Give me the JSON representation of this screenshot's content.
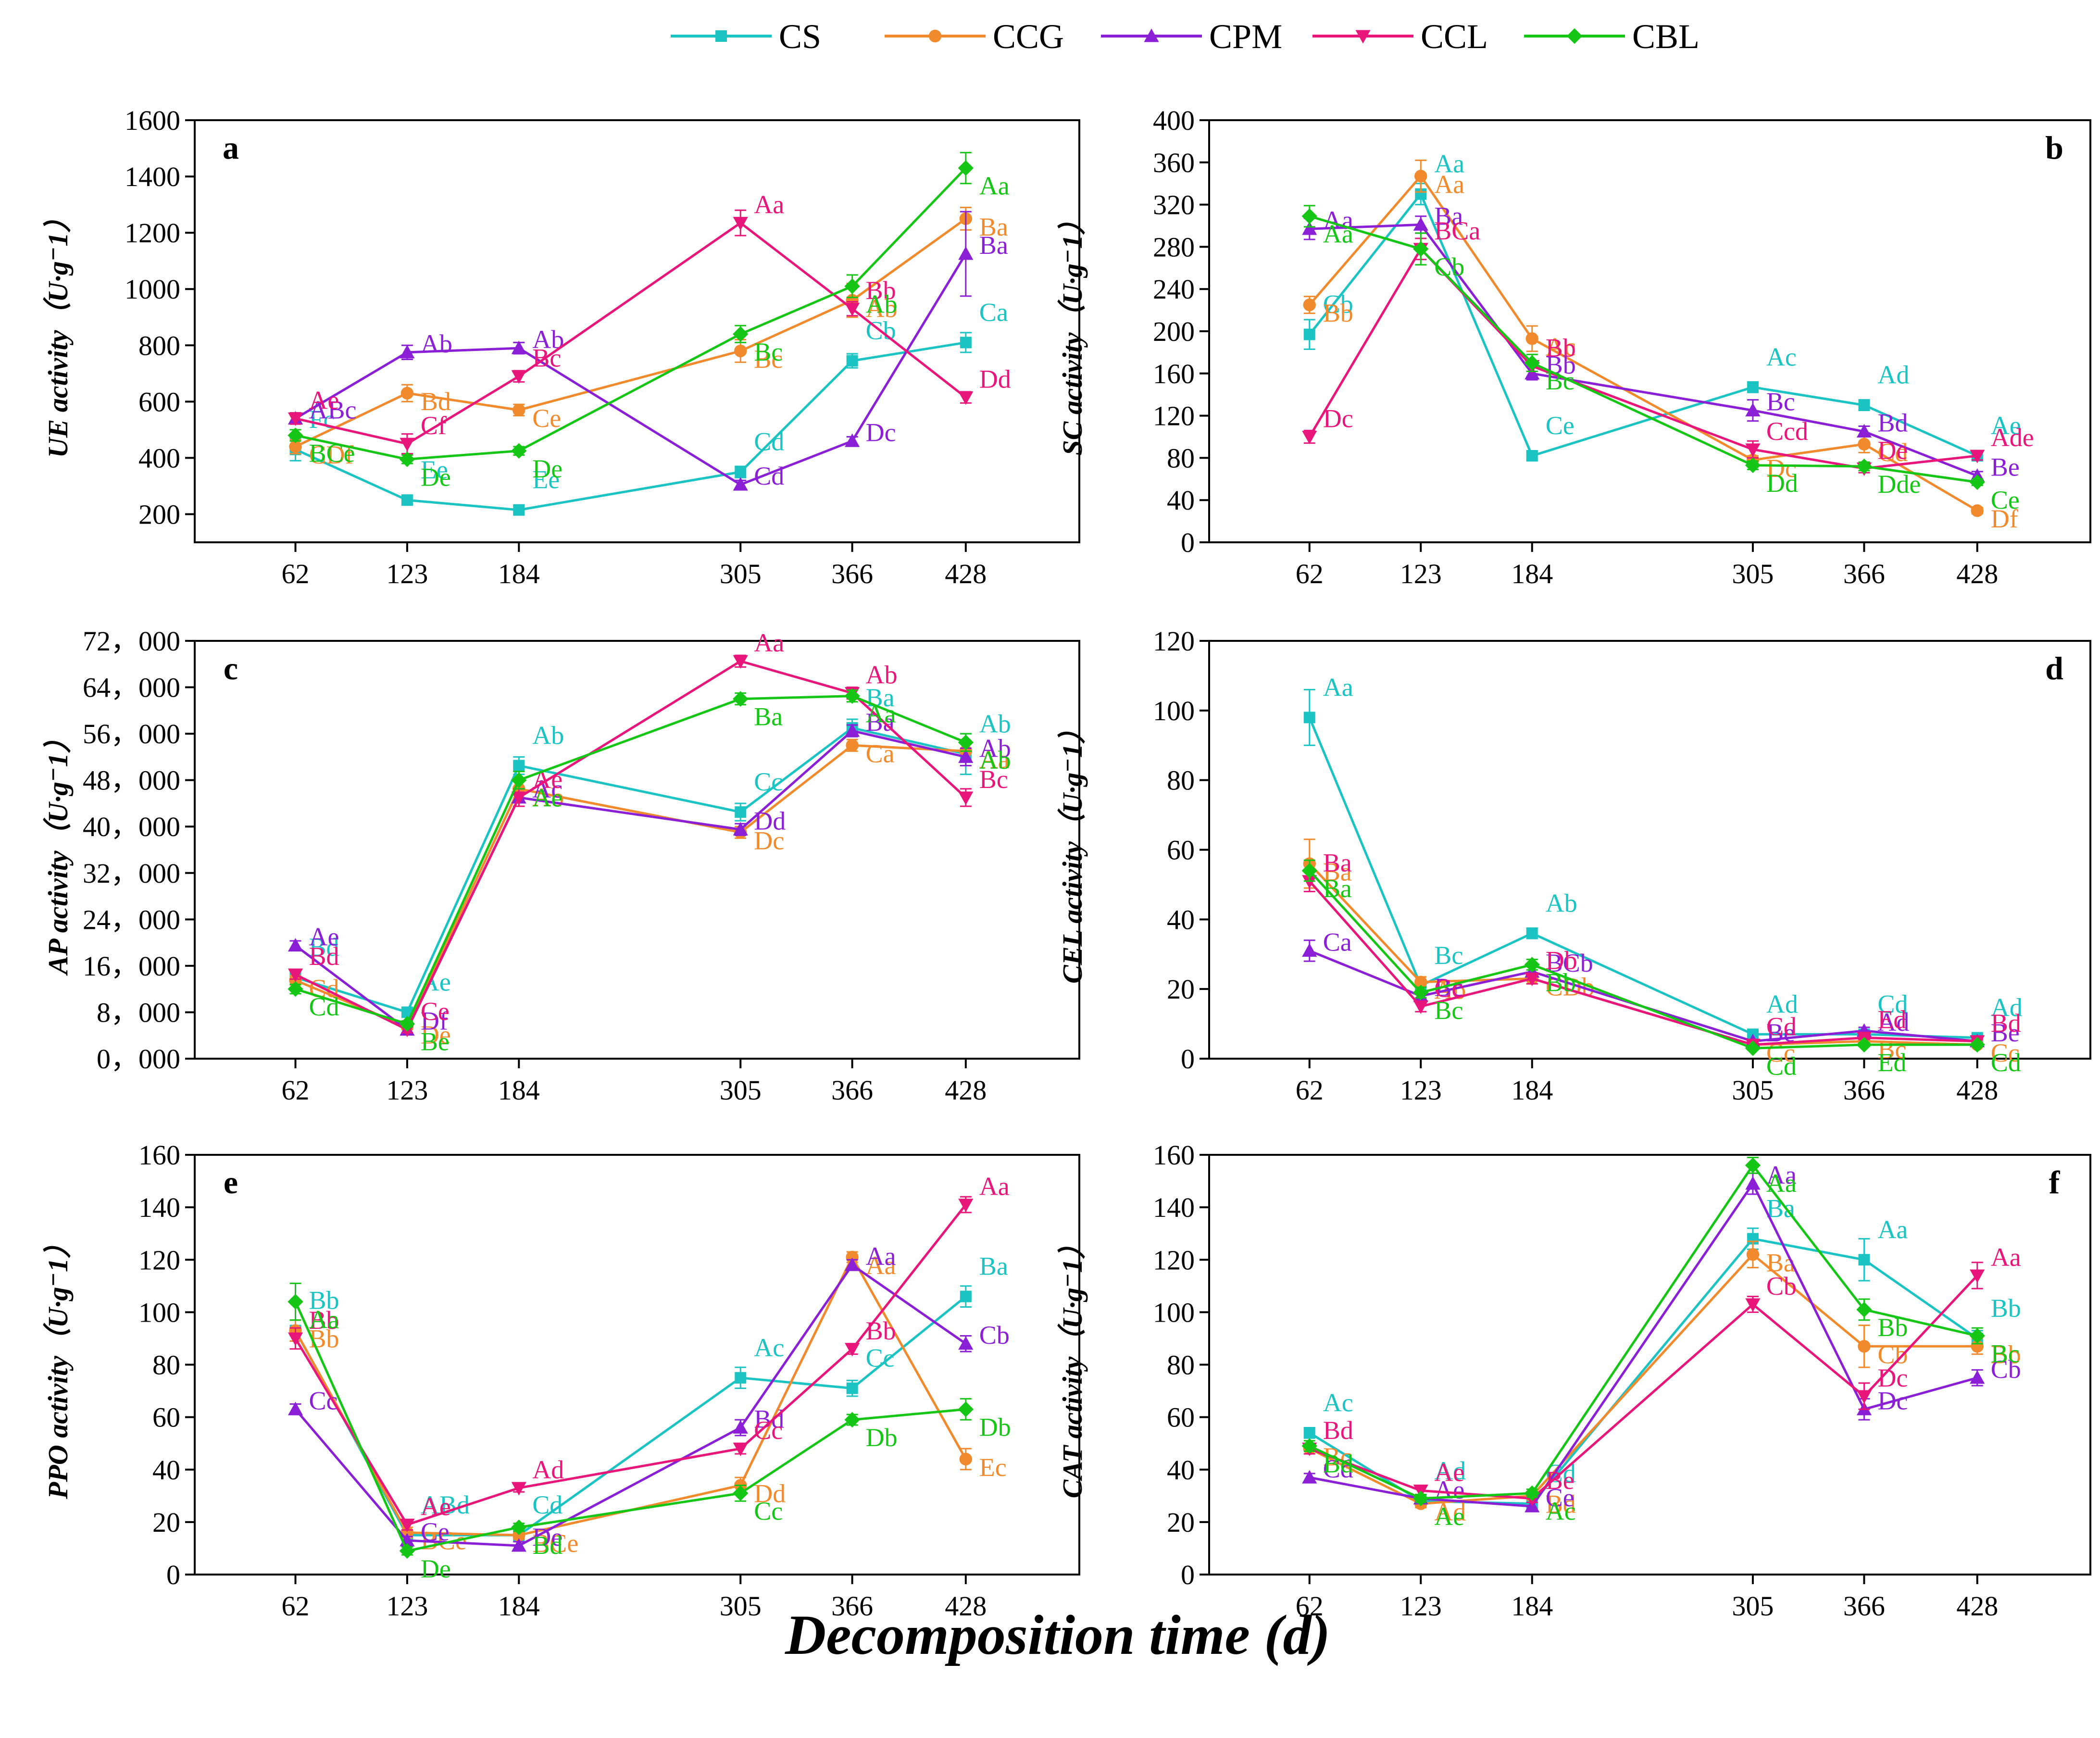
{
  "figure": {
    "xlabel": "Decomposition time (d)",
    "colors": {
      "CS": "#1BC3C3",
      "CCG": "#F08A2C",
      "CPM": "#8A1FD6",
      "CCL": "#E8157A",
      "CBL": "#16C616"
    }
  },
  "legend": [
    {
      "name": "CS",
      "marker": "square"
    },
    {
      "name": "CCG",
      "marker": "circle"
    },
    {
      "name": "CPM",
      "marker": "triangle-up"
    },
    {
      "name": "CCL",
      "marker": "triangle-down"
    },
    {
      "name": "CBL",
      "marker": "diamond"
    }
  ],
  "chart_data": [
    {
      "panel": "a",
      "type": "line",
      "ylabel": "UE activity（U·g⁻1）",
      "x": [
        62,
        123,
        184,
        305,
        366,
        428
      ],
      "xlim": [
        7,
        490
      ],
      "ylim": [
        100,
        1600
      ],
      "yticks": [
        200,
        400,
        600,
        800,
        1000,
        1200,
        1400,
        1600
      ],
      "ytick_labels": [
        "200",
        "400",
        "600",
        "800",
        "1000",
        "1200",
        "1400",
        "1600"
      ],
      "series": [
        {
          "name": "CS",
          "values": [
            430,
            250,
            215,
            350,
            745,
            810
          ],
          "err": [
            40,
            15,
            15,
            20,
            25,
            35
          ],
          "labels": [
            "Fc",
            "Ee",
            "Ee",
            "Cd",
            "Cb",
            "Ca"
          ]
        },
        {
          "name": "CCG",
          "values": [
            440,
            630,
            570,
            780,
            960,
            1250
          ],
          "err": [
            25,
            30,
            20,
            40,
            60,
            40
          ],
          "labels": [
            "CDf",
            "Bd",
            "Ce",
            "Bc",
            "Ab",
            "Ba"
          ]
        },
        {
          "name": "CPM",
          "values": [
            540,
            775,
            790,
            305,
            460,
            1125
          ],
          "err": [
            20,
            25,
            20,
            15,
            15,
            150
          ],
          "labels": [
            "ABc",
            "Ab",
            "Ab",
            "Cd",
            "Dc",
            "Ba"
          ]
        },
        {
          "name": "CCL",
          "values": [
            540,
            450,
            690,
            1235,
            930,
            615
          ],
          "err": [
            20,
            35,
            20,
            45,
            25,
            20
          ],
          "labels": [
            "Ae",
            "Cf",
            "Bc",
            "Aa",
            "Bb",
            "Dd"
          ]
        },
        {
          "name": "CBL",
          "values": [
            480,
            395,
            425,
            840,
            1010,
            1430
          ],
          "err": [
            20,
            15,
            15,
            30,
            40,
            55
          ],
          "labels": [
            "BCe",
            "De",
            "De",
            "Bc",
            "Ab",
            "Aa"
          ]
        }
      ]
    },
    {
      "panel": "b",
      "type": "line",
      "ylabel": "SC activity（U·g⁻1）",
      "x": [
        62,
        123,
        184,
        305,
        366,
        428
      ],
      "xlim": [
        7,
        490
      ],
      "ylim": [
        0,
        400
      ],
      "yticks": [
        0,
        40,
        80,
        120,
        160,
        200,
        240,
        280,
        320,
        360,
        400
      ],
      "ytick_labels": [
        "0",
        "40",
        "80",
        "120",
        "160",
        "200",
        "240",
        "280",
        "320",
        "360",
        "400"
      ],
      "series": [
        {
          "name": "CS",
          "values": [
            197,
            330,
            82,
            147,
            130,
            82
          ],
          "err": [
            14,
            10,
            4,
            5,
            5,
            4
          ],
          "labels": [
            "Cb",
            "Aa",
            "Ce",
            "Ac",
            "Ad",
            "Ae"
          ]
        },
        {
          "name": "CCG",
          "values": [
            225,
            347,
            193,
            78,
            93,
            30
          ],
          "err": [
            8,
            15,
            12,
            4,
            8,
            3
          ],
          "labels": [
            "Bb",
            "Aa",
            "Ac",
            "Dc",
            "Cd",
            "Df"
          ]
        },
        {
          "name": "CPM",
          "values": [
            297,
            301,
            160,
            125,
            105,
            63
          ],
          "err": [
            10,
            8,
            6,
            10,
            5,
            4
          ],
          "labels": [
            "Aa",
            "Ba",
            "Bb",
            "Bc",
            "Bd",
            "Be"
          ]
        },
        {
          "name": "CCL",
          "values": [
            100,
            278,
            167,
            88,
            70,
            82
          ],
          "err": [
            6,
            10,
            5,
            8,
            4,
            4
          ],
          "labels": [
            "Dc",
            "BCa",
            "Bb",
            "Ccd",
            "De",
            "Ade"
          ]
        },
        {
          "name": "CBL",
          "values": [
            309,
            278,
            170,
            73,
            72,
            57
          ],
          "err": [
            10,
            15,
            8,
            4,
            4,
            3
          ],
          "labels": [
            "Aa",
            "Cb",
            "Bc",
            "Dd",
            "Dde",
            "Ce"
          ]
        }
      ]
    },
    {
      "panel": "c",
      "type": "line",
      "ylabel": "AP activity（U·g⁻1）",
      "x": [
        62,
        123,
        184,
        305,
        366,
        428
      ],
      "xlim": [
        7,
        490
      ],
      "ylim": [
        0,
        72
      ],
      "yticks": [
        0,
        8,
        16,
        24,
        32,
        40,
        48,
        56,
        64,
        72
      ],
      "ytick_labels": [
        "0，000",
        "8，000",
        "16，000",
        "24，000",
        "32，000",
        "40，000",
        "48，000",
        "56，000",
        "64，000",
        "72，000"
      ],
      "series": [
        {
          "name": "CS",
          "values": [
            14.0,
            8.0,
            50.5,
            42.5,
            57.0,
            52.5
          ],
          "err": [
            0.8,
            0.8,
            1.5,
            1.5,
            1.5,
            3.5
          ],
          "labels": [
            "Bd",
            "Ae",
            "Ab",
            "Cc",
            "Ba",
            "Ab"
          ]
        },
        {
          "name": "CCG",
          "values": [
            13.5,
            5.5,
            46.5,
            39.0,
            54.0,
            53.0
          ],
          "err": [
            0.8,
            0.5,
            1.5,
            1.0,
            1.0,
            1.5
          ],
          "labels": [
            "Cd",
            "De",
            "Ab",
            "Dc",
            "Ca",
            "Aa"
          ]
        },
        {
          "name": "CPM",
          "values": [
            19.5,
            5.0,
            45.0,
            39.5,
            56.5,
            52.0
          ],
          "err": [
            0.8,
            0.5,
            1.5,
            1.0,
            1.0,
            1.5
          ],
          "labels": [
            "Ae",
            "Df",
            "Ac",
            "Dd",
            "Ba",
            "Ab"
          ]
        },
        {
          "name": "CCL",
          "values": [
            14.5,
            5.0,
            45.0,
            68.5,
            63.0,
            45.0
          ],
          "err": [
            0.8,
            0.5,
            1.5,
            1.0,
            1.0,
            1.5
          ],
          "labels": [
            "Bd",
            "Ce",
            "Ae",
            "Aa",
            "Ab",
            "Bc"
          ]
        },
        {
          "name": "CBL",
          "values": [
            12.0,
            6.0,
            48.0,
            62.0,
            62.5,
            54.5
          ],
          "err": [
            0.8,
            0.5,
            1.5,
            1.0,
            1.0,
            1.5
          ],
          "labels": [
            "Cd",
            "Be",
            "Ae",
            "Ba",
            "Aa",
            "Ab"
          ]
        }
      ]
    },
    {
      "panel": "d",
      "type": "line",
      "ylabel": "CEL activity（U·g⁻1）",
      "x": [
        62,
        123,
        184,
        305,
        366,
        428
      ],
      "xlim": [
        7,
        490
      ],
      "ylim": [
        0,
        120
      ],
      "yticks": [
        0,
        20,
        40,
        60,
        80,
        100,
        120
      ],
      "ytick_labels": [
        "0",
        "20",
        "40",
        "60",
        "80",
        "100",
        "120"
      ],
      "series": [
        {
          "name": "CS",
          "values": [
            98,
            21,
            36,
            7,
            7,
            6
          ],
          "err": [
            8,
            1.5,
            1.5,
            1,
            1,
            1
          ],
          "labels": [
            "Aa",
            "Bc",
            "Ab",
            "Ad",
            "Cd",
            "Ad"
          ]
        },
        {
          "name": "CCG",
          "values": [
            56,
            22,
            23,
            4,
            5,
            4
          ],
          "err": [
            7,
            1.5,
            1.5,
            0.5,
            0.5,
            0.5
          ],
          "labels": [
            "Ba",
            "Ab",
            "CDb",
            "Cc",
            "Bc",
            "Cc"
          ]
        },
        {
          "name": "CPM",
          "values": [
            31,
            18,
            25,
            5,
            8,
            5
          ],
          "err": [
            3,
            1.5,
            1.5,
            0.5,
            1,
            0.5
          ],
          "labels": [
            "Ca",
            "Bc",
            "BCb",
            "Be",
            "Ad",
            "Be"
          ]
        },
        {
          "name": "CCL",
          "values": [
            51,
            15,
            23,
            4,
            6,
            5
          ],
          "err": [
            3,
            1.5,
            1.5,
            0.5,
            0.5,
            0.5
          ],
          "labels": [
            "Ba",
            "Cc",
            "Db",
            "Cd",
            "Ed",
            "Bd"
          ]
        },
        {
          "name": "CBL",
          "values": [
            54,
            19,
            27,
            3,
            4,
            4
          ],
          "err": [
            3,
            1.5,
            1.5,
            0.5,
            0.5,
            0.5
          ],
          "labels": [
            "Ba",
            "Bc",
            "Bb",
            "Cd",
            "Ed",
            "Cd"
          ]
        }
      ]
    },
    {
      "panel": "e",
      "type": "line",
      "ylabel": "PPO activity（U·g⁻1）",
      "x": [
        62,
        123,
        184,
        305,
        366,
        428
      ],
      "xlim": [
        7,
        490
      ],
      "ylim": [
        0,
        160
      ],
      "yticks": [
        0,
        20,
        40,
        60,
        80,
        100,
        120,
        140,
        160
      ],
      "ytick_labels": [
        "0",
        "20",
        "40",
        "60",
        "80",
        "100",
        "120",
        "140",
        "160"
      ],
      "series": [
        {
          "name": "CS",
          "values": [
            93,
            15,
            15,
            75,
            71,
            106
          ],
          "err": [
            4,
            2,
            1.5,
            4,
            3,
            4
          ],
          "labels": [
            "Bb",
            "ABd",
            "Cd",
            "Ac",
            "Cc",
            "Ba"
          ]
        },
        {
          "name": "CCG",
          "values": [
            93,
            16,
            15,
            34,
            121,
            44
          ],
          "err": [
            4,
            2,
            1.5,
            3,
            2,
            4
          ],
          "labels": [
            "Bb",
            "BCe",
            "BCe",
            "Dd",
            "Aa",
            "Ec"
          ]
        },
        {
          "name": "CPM",
          "values": [
            63,
            13,
            11,
            56,
            118,
            88
          ],
          "err": [
            2,
            1.5,
            1.5,
            3,
            2,
            3
          ],
          "labels": [
            "Cc",
            "Ce",
            "De",
            "Bd",
            "Aa",
            "Cb"
          ]
        },
        {
          "name": "CCL",
          "values": [
            90,
            19,
            33,
            48,
            86,
            141
          ],
          "err": [
            4,
            2,
            1.5,
            2,
            2,
            3
          ],
          "labels": [
            "Bb",
            "Ae",
            "Ad",
            "Cc",
            "Bb",
            "Aa"
          ]
        },
        {
          "name": "CBL",
          "values": [
            104,
            9,
            18,
            31,
            59,
            63
          ],
          "err": [
            7,
            1.5,
            1.5,
            3,
            2,
            4
          ],
          "labels": [
            "Aa",
            "De",
            "Bd",
            "Cc",
            "Db",
            "Db"
          ]
        }
      ]
    },
    {
      "panel": "f",
      "type": "line",
      "ylabel": "CAT activity（U·g⁻1）",
      "x": [
        62,
        123,
        184,
        305,
        366,
        428
      ],
      "xlim": [
        7,
        490
      ],
      "ylim": [
        0,
        160
      ],
      "yticks": [
        0,
        20,
        40,
        60,
        80,
        100,
        120,
        140,
        160
      ],
      "ytick_labels": [
        "0",
        "20",
        "40",
        "60",
        "80",
        "100",
        "120",
        "140",
        "160"
      ],
      "series": [
        {
          "name": "CS",
          "values": [
            54,
            28,
            27,
            128,
            120,
            90
          ],
          "err": [
            2,
            1.5,
            1.5,
            4,
            8,
            3
          ],
          "labels": [
            "Ac",
            "Ad",
            "Cd",
            "Ba",
            "Aa",
            "Bb"
          ]
        },
        {
          "name": "CCG",
          "values": [
            48,
            27,
            30,
            122,
            87,
            87
          ],
          "err": [
            2,
            1.5,
            1.5,
            5,
            8,
            3
          ],
          "labels": [
            "Bc",
            "Ad",
            "Bd",
            "Ba",
            "Cb",
            "Bb"
          ]
        },
        {
          "name": "CPM",
          "values": [
            37,
            29,
            26,
            149,
            63,
            75
          ],
          "err": [
            1.5,
            1.5,
            1.5,
            4,
            4,
            3
          ],
          "labels": [
            "Cd",
            "Ae",
            "Ce",
            "Aa",
            "Dc",
            "Cb"
          ]
        },
        {
          "name": "CCL",
          "values": [
            48,
            32,
            29,
            103,
            68,
            114
          ],
          "err": [
            2,
            1.5,
            1.5,
            3,
            5,
            5
          ],
          "labels": [
            "Bd",
            "Ae",
            "Be",
            "Cb",
            "Dc",
            "Aa"
          ]
        },
        {
          "name": "CBL",
          "values": [
            49,
            29,
            31,
            156,
            101,
            91
          ],
          "err": [
            2,
            1.5,
            1.5,
            3,
            4,
            3
          ],
          "labels": [
            "Bd",
            "Ae",
            "Ac",
            "Aa",
            "Bb",
            "Bc"
          ]
        }
      ]
    }
  ]
}
